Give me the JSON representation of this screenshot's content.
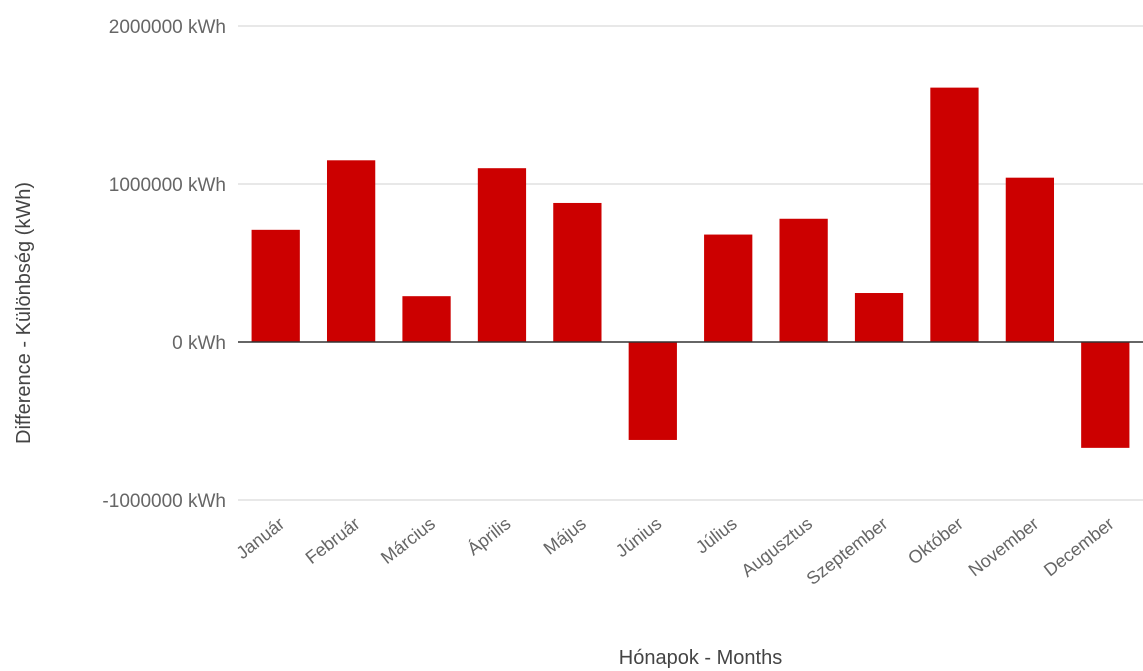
{
  "chart_data": {
    "type": "bar",
    "categories": [
      "Január",
      "Február",
      "Március",
      "Április",
      "Május",
      "Június",
      "Július",
      "Augusztus",
      "Szeptember",
      "Október",
      "November",
      "December"
    ],
    "values": [
      710000,
      1150000,
      290000,
      1100000,
      880000,
      -620000,
      680000,
      780000,
      310000,
      1610000,
      1040000,
      -670000
    ],
    "title": "",
    "xlabel": "Hónapok - Months",
    "ylabel": "Difference - Különbség (kWh)",
    "ylim": [
      -1000000,
      2000000
    ],
    "yticks": [
      {
        "value": 2000000,
        "label": "2000000 kWh"
      },
      {
        "value": 1000000,
        "label": "1000000 kWh"
      },
      {
        "value": 0,
        "label": "0 kWh"
      },
      {
        "value": -1000000,
        "label": "-1000000 kWh"
      }
    ],
    "bar_color": "#cc0000",
    "grid": true,
    "legend": "none"
  }
}
